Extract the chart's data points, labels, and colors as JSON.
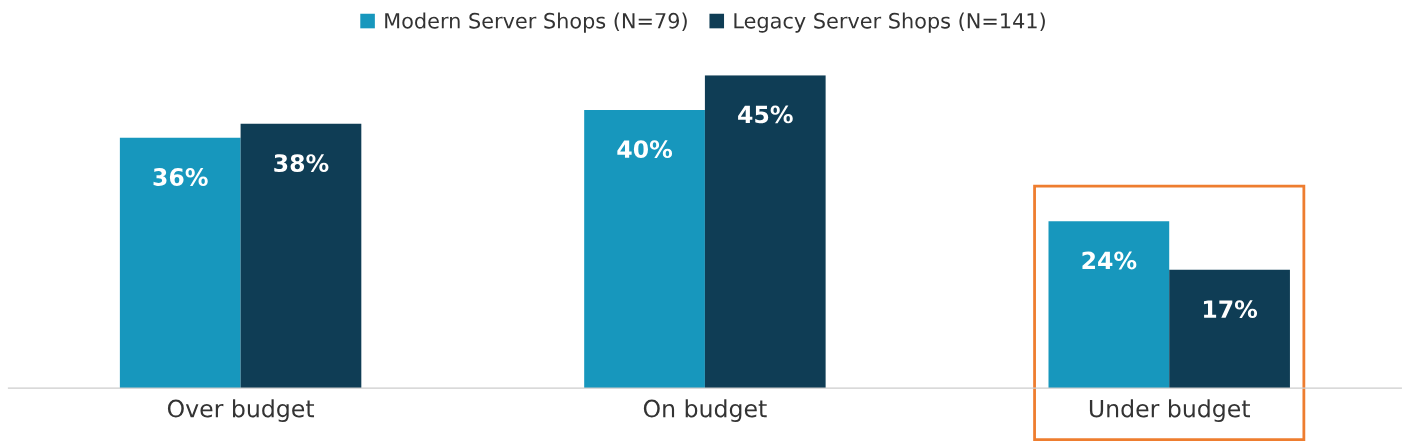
{
  "chart_data": {
    "type": "bar",
    "categories": [
      "Over budget",
      "On budget",
      "Under budget"
    ],
    "series": [
      {
        "name": "Modern Server Shops (N=79)",
        "color": "#1797bd",
        "values": [
          36,
          40,
          24
        ],
        "value_labels": [
          "36%",
          "40%",
          "24%"
        ]
      },
      {
        "name": "Legacy Server Shops (N=141)",
        "color": "#0f3d55",
        "values": [
          38,
          45,
          17
        ],
        "value_labels": [
          "38%",
          "45%",
          "17%"
        ]
      }
    ],
    "tick_labels": "x",
    "legend": "top",
    "grid": false
  }
}
